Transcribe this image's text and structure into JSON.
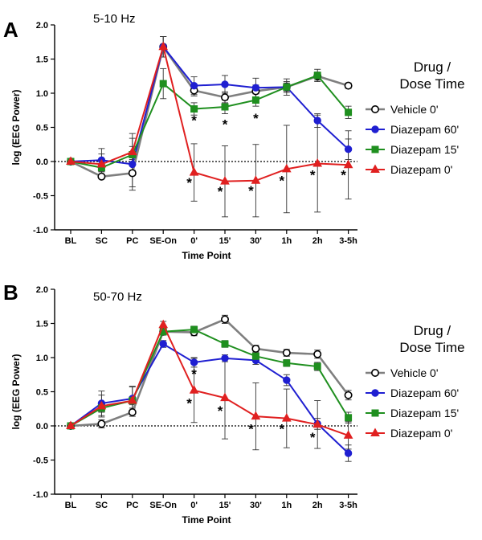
{
  "legend": {
    "title_line1": "Drug /",
    "title_line2": "Dose Time",
    "entries": [
      "Vehicle 0'",
      "Diazepam 60'",
      "Diazepam 15'",
      "Diazepam 0'"
    ]
  },
  "colors": {
    "vehicle": "#7f7f7f",
    "diazepam_60": "#1f1fd1",
    "diazepam_15": "#1f8f1f",
    "diazepam_0": "#e02020",
    "axis": "#000000"
  },
  "chart_data": [
    {
      "type": "line",
      "panel": "A",
      "title": "5-10 Hz",
      "xlabel": "Time Point",
      "ylabel": "log (EEG Power)",
      "ylim": [
        -1.0,
        2.0
      ],
      "yticks": [
        "-1.0",
        "-0.5",
        "0.0",
        "0.5",
        "1.0",
        "1.5",
        "2.0"
      ],
      "categories": [
        "BL",
        "SC",
        "PC",
        "SE-On",
        "0'",
        "15'",
        "30'",
        "1h",
        "2h",
        "3-5h"
      ],
      "reference_line": 0,
      "series": [
        {
          "name": "Vehicle 0'",
          "marker": "open-circle",
          "values": [
            0.0,
            -0.22,
            -0.17,
            1.68,
            1.04,
            0.94,
            1.03,
            1.09,
            1.25,
            1.11
          ],
          "err": [
            0.02,
            0.03,
            0.2,
            0.15,
            0.08,
            0.08,
            0.09,
            0.06,
            0.06,
            0.04
          ]
        },
        {
          "name": "Diazepam 60'",
          "marker": "circle",
          "values": [
            0.0,
            0.02,
            -0.04,
            1.68,
            1.11,
            1.13,
            1.08,
            1.09,
            0.6,
            0.18
          ],
          "err": [
            0.02,
            0.17,
            0.38,
            0.15,
            0.13,
            0.13,
            0.14,
            0.12,
            0.1,
            0.15
          ]
        },
        {
          "name": "Diazepam 15'",
          "marker": "square",
          "values": [
            0.0,
            -0.09,
            0.1,
            1.14,
            0.77,
            0.8,
            0.9,
            1.09,
            1.26,
            0.72
          ],
          "err": [
            0.02,
            0.06,
            0.12,
            0.22,
            0.09,
            0.1,
            0.09,
            0.08,
            0.09,
            0.09
          ]
        },
        {
          "name": "Diazepam 0'",
          "marker": "triangle",
          "values": [
            0.0,
            -0.04,
            0.14,
            1.68,
            -0.16,
            -0.29,
            -0.28,
            -0.11,
            -0.03,
            -0.05
          ],
          "err": [
            0.02,
            0.15,
            0.27,
            0.15,
            0.42,
            0.52,
            0.53,
            0.64,
            0.71,
            0.5
          ]
        }
      ],
      "significance_markers": [
        {
          "category": "0'",
          "label": "*",
          "y": -0.28,
          "side": "left"
        },
        {
          "category": "0'",
          "label": "*",
          "y": 0.63,
          "side": "center"
        },
        {
          "category": "15'",
          "label": "*",
          "y": -0.41,
          "side": "left"
        },
        {
          "category": "15'",
          "label": "*",
          "y": 0.57,
          "side": "center"
        },
        {
          "category": "30'",
          "label": "*",
          "y": -0.4,
          "side": "left"
        },
        {
          "category": "30'",
          "label": "*",
          "y": 0.66,
          "side": "center"
        },
        {
          "category": "1h",
          "label": "*",
          "y": -0.25,
          "side": "left"
        },
        {
          "category": "2h",
          "label": "*",
          "y": -0.17,
          "side": "left"
        },
        {
          "category": "3-5h",
          "label": "*",
          "y": -0.17,
          "side": "left"
        }
      ]
    },
    {
      "type": "line",
      "panel": "B",
      "title": "50-70 Hz",
      "xlabel": "Time Point",
      "ylabel": "log (EEG Power)",
      "ylim": [
        -1.0,
        2.0
      ],
      "yticks": [
        "-1.0",
        "-0.5",
        "0.0",
        "0.5",
        "1.0",
        "1.5",
        "2.0"
      ],
      "categories": [
        "BL",
        "SC",
        "PC",
        "SE-On",
        "0'",
        "15'",
        "30'",
        "1h",
        "2h",
        "3-5h"
      ],
      "reference_line": 0,
      "series": [
        {
          "name": "Vehicle 0'",
          "marker": "open-circle",
          "values": [
            0.0,
            0.03,
            0.2,
            1.38,
            1.37,
            1.56,
            1.13,
            1.07,
            1.05,
            0.45
          ],
          "err": [
            0.02,
            0.06,
            0.06,
            0.05,
            0.05,
            0.06,
            0.05,
            0.05,
            0.06,
            0.07
          ]
        },
        {
          "name": "Diazepam 60'",
          "marker": "circle",
          "values": [
            0.0,
            0.33,
            0.4,
            1.2,
            0.93,
            0.99,
            0.96,
            0.67,
            0.03,
            -0.4
          ],
          "err": [
            0.02,
            0.18,
            0.18,
            0.05,
            0.07,
            0.05,
            0.06,
            0.08,
            0.08,
            0.12
          ]
        },
        {
          "name": "Diazepam 15'",
          "marker": "square",
          "values": [
            0.0,
            0.26,
            0.37,
            1.38,
            1.41,
            1.2,
            1.02,
            0.92,
            0.87,
            0.12
          ],
          "err": [
            0.02,
            0.06,
            0.06,
            0.05,
            0.05,
            0.05,
            0.06,
            0.05,
            0.06,
            0.08
          ]
        },
        {
          "name": "Diazepam 0'",
          "marker": "triangle",
          "values": [
            0.0,
            0.29,
            0.37,
            1.48,
            0.52,
            0.41,
            0.14,
            0.11,
            0.02,
            -0.14
          ],
          "err": [
            0.02,
            0.16,
            0.2,
            0.05,
            0.47,
            0.6,
            0.49,
            0.43,
            0.35,
            0.2
          ]
        }
      ],
      "significance_markers": [
        {
          "category": "0'",
          "label": "*",
          "y": 0.36,
          "side": "left"
        },
        {
          "category": "0'",
          "label": "*",
          "y": 0.79,
          "side": "center"
        },
        {
          "category": "15'",
          "label": "*",
          "y": 0.25,
          "side": "left"
        },
        {
          "category": "30'",
          "label": "*",
          "y": -0.02,
          "side": "left"
        },
        {
          "category": "1h",
          "label": "*",
          "y": -0.02,
          "side": "left"
        },
        {
          "category": "2h",
          "label": "*",
          "y": -0.14,
          "side": "left"
        }
      ]
    }
  ]
}
